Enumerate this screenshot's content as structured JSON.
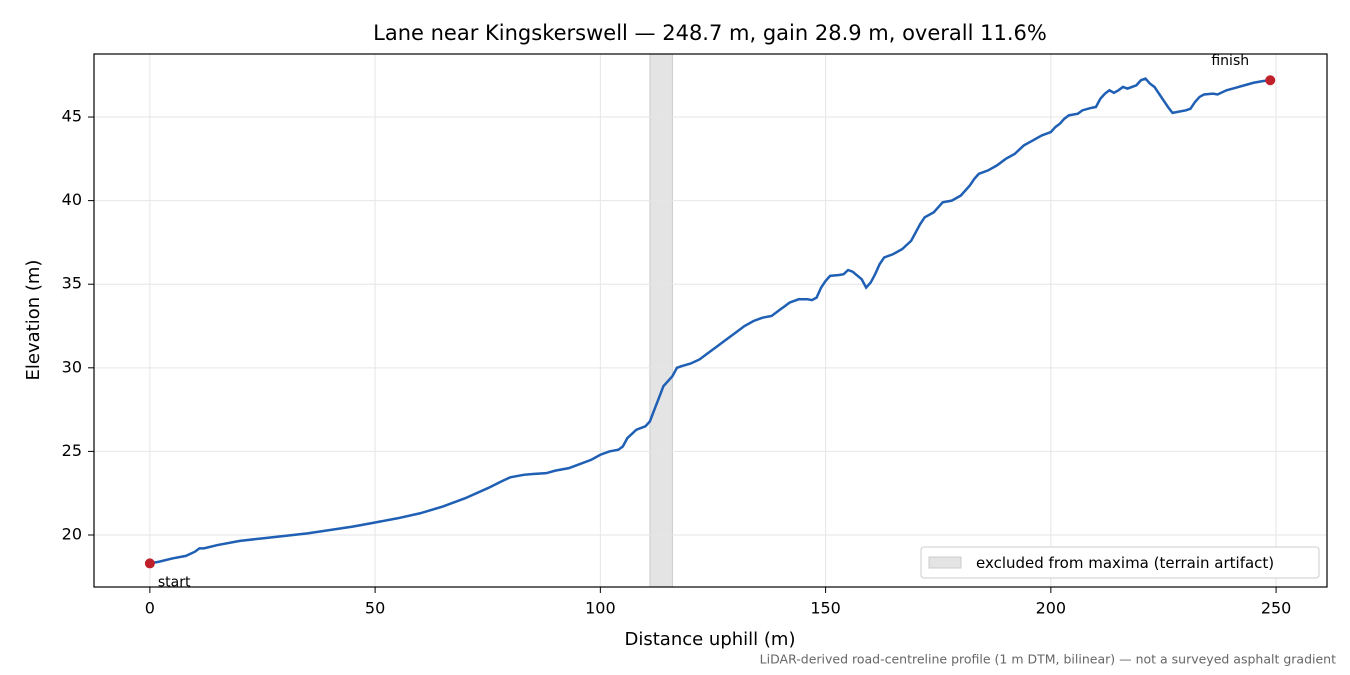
{
  "chart_data": {
    "type": "line",
    "title": "Lane near Kingskerswell — 248.7 m, gain 28.9 m, overall 11.6%",
    "x_label": "Distance uphill (m)",
    "y_label": "Elevation (m)",
    "note": "LiDAR-derived road-centreline profile (1 m DTM, bilinear) — not a surveyed asphalt gradient",
    "x": [
      0,
      2,
      5,
      8,
      10,
      11,
      12,
      15,
      20,
      25,
      30,
      35,
      40,
      45,
      50,
      55,
      60,
      65,
      70,
      75,
      78,
      80,
      83,
      85,
      88,
      90,
      93,
      95,
      98,
      100,
      102,
      104,
      105,
      106,
      108,
      110,
      111,
      112,
      113,
      114,
      116,
      117,
      118,
      120,
      122,
      124,
      126,
      128,
      130,
      132,
      134,
      136,
      138,
      140,
      141,
      142,
      144,
      146,
      147,
      148,
      149,
      150,
      151,
      153,
      154,
      155,
      156,
      158,
      159,
      160,
      161,
      162,
      163,
      165,
      167,
      169,
      170,
      171,
      172,
      174,
      175,
      176,
      178,
      180,
      182,
      183,
      184,
      186,
      188,
      190,
      192,
      194,
      196,
      198,
      200,
      201,
      202,
      203,
      204,
      206,
      207,
      209,
      210,
      211,
      212,
      213,
      214,
      215,
      216,
      217,
      219,
      220,
      221,
      222,
      223,
      224,
      225,
      226,
      227,
      228,
      230,
      231,
      232,
      233,
      234,
      236,
      237,
      239,
      241,
      243,
      245,
      247,
      248.7
    ],
    "values": [
      18.3,
      18.4,
      18.6,
      18.75,
      19.0,
      19.2,
      19.2,
      19.4,
      19.65,
      19.8,
      19.95,
      20.1,
      20.3,
      20.5,
      20.75,
      21.0,
      21.3,
      21.7,
      22.2,
      22.8,
      23.2,
      23.45,
      23.6,
      23.65,
      23.7,
      23.85,
      24.0,
      24.2,
      24.5,
      24.8,
      25.0,
      25.1,
      25.3,
      25.8,
      26.3,
      26.5,
      26.8,
      27.5,
      28.2,
      28.9,
      29.5,
      30.0,
      30.1,
      30.25,
      30.5,
      30.9,
      31.3,
      31.7,
      32.1,
      32.5,
      32.8,
      33.0,
      33.1,
      33.5,
      33.7,
      33.9,
      34.1,
      34.1,
      34.05,
      34.2,
      34.8,
      35.2,
      35.5,
      35.55,
      35.6,
      35.85,
      35.75,
      35.3,
      34.8,
      35.1,
      35.6,
      36.2,
      36.6,
      36.8,
      37.1,
      37.6,
      38.1,
      38.6,
      39.0,
      39.3,
      39.6,
      39.9,
      40.0,
      40.3,
      40.9,
      41.3,
      41.6,
      41.8,
      42.1,
      42.5,
      42.8,
      43.3,
      43.6,
      43.9,
      44.1,
      44.4,
      44.6,
      44.9,
      45.1,
      45.2,
      45.4,
      45.55,
      45.6,
      46.1,
      46.4,
      46.6,
      46.45,
      46.6,
      46.8,
      46.7,
      46.9,
      47.2,
      47.3,
      47.0,
      46.8,
      46.4,
      46.0,
      45.6,
      45.25,
      45.3,
      45.4,
      45.5,
      45.9,
      46.2,
      46.35,
      46.4,
      46.35,
      46.6,
      46.75,
      46.9,
      47.05,
      47.15,
      47.2
    ],
    "color": "#1f5fb4",
    "endpoints": {
      "color": "#c0202a",
      "labels": [
        "start",
        "finish"
      ]
    },
    "excluded": {
      "label": "excluded from maxima (terrain artifact)",
      "range": [
        111,
        116
      ],
      "color": "#e4e4e4"
    },
    "xlim": [
      -12.4,
      261.3
    ],
    "ylim": [
      16.89,
      48.77
    ],
    "xticks": [
      0,
      50,
      100,
      150,
      200,
      250
    ],
    "yticks": [
      20,
      25,
      30,
      35,
      40,
      45
    ],
    "grid": true,
    "legend": "lower right"
  }
}
